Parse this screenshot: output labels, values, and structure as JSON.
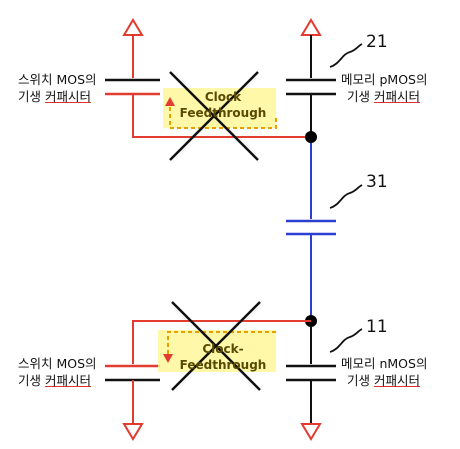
{
  "labels": {
    "switch_top_line1": "스위치 MOS의",
    "switch_top_line2a": "기생 ",
    "switch_top_line2b": "커패시터",
    "memory_top_line1": "메모리 pMOS의",
    "memory_top_line2a": "기생 ",
    "memory_top_line2b": "커패시터",
    "switch_bottom_line1": "스위치 MOS의",
    "switch_bottom_line2a": "기생 ",
    "switch_bottom_line2b": "커패시터",
    "memory_bottom_line1": "메모리  nMOS의",
    "memory_bottom_line2a": "기생 ",
    "memory_bottom_line2b": "커패시터"
  },
  "refs": {
    "top_memory": "21",
    "coupling": "31",
    "bottom_memory": "11"
  },
  "clock_feedthrough": {
    "top_line1": "Clock",
    "top_line2": "Feedthrough",
    "bottom_line1": "Clock-",
    "bottom_line2": "Feedthrough"
  },
  "colors": {
    "switch_path": "#e23b30",
    "coupling_path": "#2b3fd0",
    "memory_path": "#111111",
    "highlight": "#fff79a"
  }
}
